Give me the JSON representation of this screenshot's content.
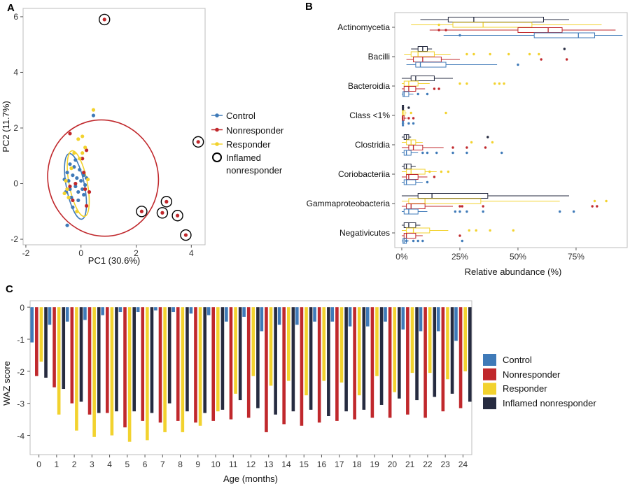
{
  "colors": {
    "control": "#3f7ab8",
    "nonresponder": "#c0282c",
    "responder": "#f2d22e",
    "inflamed": "#262b40"
  },
  "chart_data": [
    {
      "panel": "A",
      "type": "scatter",
      "xlabel": "PC1 (30.6%)",
      "ylabel": "PC2 (11.7%)",
      "xlim": [
        -2.1,
        4.5
      ],
      "ylim": [
        -2.2,
        6.3
      ],
      "xticks": [
        -2,
        0,
        2,
        4
      ],
      "yticks": [
        -2,
        0,
        2,
        4,
        6
      ],
      "legend": [
        {
          "key": "control",
          "label": "Control"
        },
        {
          "key": "nonresponder",
          "label": "Nonresponder"
        },
        {
          "key": "responder",
          "label": "Responder"
        }
      ],
      "legend_ring": {
        "label_line1": "Inflamed",
        "label_line2": "nonresponder"
      },
      "series": [
        {
          "key": "control",
          "points": [
            [
              -0.5,
              0.4
            ],
            [
              -0.45,
              0.1
            ],
            [
              -0.4,
              -0.2
            ],
            [
              -0.3,
              0.3
            ],
            [
              -0.35,
              -0.5
            ],
            [
              -0.25,
              0.6
            ],
            [
              -0.2,
              -0.1
            ],
            [
              -0.15,
              0.2
            ],
            [
              -0.1,
              -0.3
            ],
            [
              -0.05,
              0.5
            ],
            [
              0,
              0.1
            ],
            [
              0.05,
              -0.2
            ],
            [
              0.1,
              0.3
            ],
            [
              -0.55,
              -0.3
            ],
            [
              -0.6,
              0.15
            ],
            [
              -0.2,
              0.85
            ],
            [
              0.15,
              -0.05
            ],
            [
              -0.3,
              -0.85
            ],
            [
              -0.1,
              -0.6
            ],
            [
              0.2,
              0.2
            ],
            [
              -0.5,
              -1.5
            ],
            [
              0.45,
              2.45
            ],
            [
              -0.4,
              0.7
            ],
            [
              0.1,
              -0.4
            ]
          ]
        },
        {
          "key": "nonresponder",
          "points": [
            [
              -0.5,
              -0.2
            ],
            [
              -0.3,
              -0.6
            ],
            [
              0.05,
              0.9
            ],
            [
              0.2,
              -0.8
            ],
            [
              0.15,
              -0.2
            ],
            [
              -0.2,
              0.0
            ],
            [
              0.3,
              -0.3
            ],
            [
              -0.4,
              -0.1
            ],
            [
              0.1,
              0.4
            ],
            [
              -0.4,
              1.8
            ],
            [
              0.2,
              1.2
            ],
            [
              0.85,
              5.9
            ],
            [
              4.25,
              1.5
            ],
            [
              2.2,
              -1.0
            ],
            [
              3.1,
              -0.65
            ],
            [
              2.95,
              -1.05
            ],
            [
              3.5,
              -1.15
            ],
            [
              3.8,
              -1.85
            ]
          ]
        },
        {
          "key": "responder",
          "points": [
            [
              -0.1,
              1.6
            ],
            [
              0.05,
              1.7
            ],
            [
              0.15,
              1.3
            ],
            [
              0.05,
              1.1
            ],
            [
              -0.05,
              0.9
            ],
            [
              -0.25,
              1.1
            ],
            [
              -0.5,
              -0.2
            ],
            [
              -0.45,
              -0.5
            ],
            [
              -0.15,
              -1.0
            ],
            [
              -0.55,
              0.1
            ],
            [
              -0.6,
              -0.35
            ],
            [
              0.45,
              2.65
            ],
            [
              -0.35,
              0.55
            ],
            [
              0.25,
              0.15
            ]
          ]
        }
      ],
      "ellipses": [
        {
          "key": "nonresponder",
          "cx": 0.8,
          "cy": 0.2,
          "rx": 2.0,
          "ry": 2.1,
          "rot": -16
        },
        {
          "key": "control",
          "cx": -0.2,
          "cy": -0.1,
          "rx": 0.33,
          "ry": 1.2,
          "rot": -11
        },
        {
          "key": "responder",
          "cx": -0.1,
          "cy": 0.0,
          "rx": 0.33,
          "ry": 1.2,
          "rot": -11
        }
      ],
      "inflamed_rings": [
        [
          0.85,
          5.9
        ],
        [
          4.25,
          1.5
        ],
        [
          2.2,
          -1.0
        ],
        [
          3.1,
          -0.65
        ],
        [
          2.95,
          -1.05
        ],
        [
          3.5,
          -1.15
        ],
        [
          3.8,
          -1.85
        ]
      ]
    },
    {
      "panel": "B",
      "type": "box",
      "xlabel": "Relative abundance (%)",
      "xlim": [
        -3,
        97
      ],
      "xticks": [
        0,
        25,
        50,
        75
      ],
      "xtick_labels": [
        "0%",
        "25%",
        "50%",
        "75%"
      ],
      "group_order": [
        "inflamed",
        "responder",
        "nonresponder",
        "control"
      ],
      "categories": [
        {
          "name": "Actinomycetia",
          "boxes": [
            [
              8,
              20,
              31,
              61,
              72,
              []
            ],
            [
              4,
              22,
              35,
              56,
              86,
              [
                16
              ]
            ],
            [
              12,
              50,
              63,
              69,
              92,
              [
                16,
                19
              ]
            ],
            [
              18,
              57,
              76,
              83,
              95,
              [
                25
              ]
            ]
          ]
        },
        {
          "name": "Bacilli",
          "boxes": [
            [
              4,
              7,
              9,
              11,
              13,
              [
                70
              ]
            ],
            [
              1,
              4,
              7,
              14,
              21,
              [
                28,
                31,
                38,
                46,
                55,
                59
              ]
            ],
            [
              2,
              5,
              9,
              17,
              25,
              [
                60,
                71
              ]
            ],
            [
              2,
              6,
              8,
              19,
              41,
              [
                50
              ]
            ]
          ]
        },
        {
          "name": "Bacteroidia",
          "boxes": [
            [
              0,
              4,
              6,
              14,
              22,
              []
            ],
            [
              0,
              1,
              3,
              7,
              12,
              [
                25,
                28,
                40,
                42,
                44
              ]
            ],
            [
              0,
              1,
              3,
              6,
              10,
              [
                14,
                16
              ]
            ],
            [
              0,
              0.5,
              1,
              3,
              5,
              [
                7,
                11
              ]
            ]
          ]
        },
        {
          "name": "Class <1%",
          "boxes": [
            [
              0,
              0.2,
              0.5,
              0.8,
              1,
              [
                3
              ]
            ],
            [
              0,
              0.3,
              0.6,
              1.4,
              2,
              [
                4,
                19
              ]
            ],
            [
              0,
              0.2,
              0.5,
              1,
              2,
              [
                3,
                5
              ]
            ],
            [
              0,
              0.2,
              0.4,
              0.8,
              1,
              [
                3,
                5
              ]
            ]
          ]
        },
        {
          "name": "Clostridia",
          "boxes": [
            [
              0,
              1,
              2,
              3,
              4,
              [
                37
              ]
            ],
            [
              0,
              2,
              4,
              6,
              9,
              [
                30,
                39
              ]
            ],
            [
              0,
              3,
              5,
              9,
              18,
              [
                22,
                28,
                36
              ]
            ],
            [
              0,
              1,
              2,
              4,
              7,
              [
                9,
                11,
                15,
                22,
                28,
                43
              ]
            ]
          ]
        },
        {
          "name": "Coriobacteriia",
          "boxes": [
            [
              0,
              1,
              2,
              4,
              6,
              []
            ],
            [
              0,
              2,
              4,
              10,
              15,
              [
                12,
                17,
                20
              ]
            ],
            [
              0,
              2,
              3,
              7,
              11,
              [
                14
              ]
            ],
            [
              0,
              1,
              2,
              6,
              9,
              [
                11
              ]
            ]
          ]
        },
        {
          "name": "Gammaproteobacteria",
          "boxes": [
            [
              0,
              7,
              13,
              37,
              72,
              []
            ],
            [
              0,
              3,
              10,
              34,
              68,
              [
                83,
                88
              ]
            ],
            [
              0,
              2,
              4,
              10,
              22,
              [
                25,
                26,
                35,
                82,
                84
              ]
            ],
            [
              0,
              1,
              3,
              7,
              11,
              [
                23,
                25,
                28,
                35,
                68,
                74
              ]
            ]
          ]
        },
        {
          "name": "Negativicutes",
          "boxes": [
            [
              0,
              1,
              3,
              6,
              8,
              []
            ],
            [
              0,
              2,
              5,
              12,
              20,
              [
                29,
                32,
                38,
                48
              ]
            ],
            [
              0,
              1,
              2,
              6,
              9,
              [
                25
              ]
            ],
            [
              0,
              0.5,
              1,
              2,
              3,
              [
                2,
                5,
                7,
                9,
                26
              ]
            ]
          ]
        }
      ]
    },
    {
      "panel": "C",
      "type": "bar",
      "xlabel": "Age (months)",
      "ylabel": "WAZ score",
      "ylim": [
        -4.6,
        0.2
      ],
      "yticks": [
        0,
        -1,
        -2,
        -3,
        -4
      ],
      "categories": [
        "0",
        "1",
        "2",
        "3",
        "4",
        "5",
        "6",
        "7",
        "8",
        "9",
        "10",
        "11",
        "12",
        "13",
        "14",
        "15",
        "16",
        "17",
        "18",
        "19",
        "20",
        "21",
        "22",
        "23",
        "24"
      ],
      "series": [
        {
          "key": "control",
          "name": "Control",
          "values": [
            -1.1,
            -0.55,
            -0.45,
            -0.4,
            -0.25,
            -0.15,
            -0.15,
            -0.1,
            -0.15,
            -0.2,
            -0.25,
            -0.45,
            -0.3,
            -0.75,
            -0.55,
            -0.55,
            -0.45,
            -0.45,
            -0.6,
            -0.6,
            -0.45,
            -0.7,
            -0.75,
            -0.75,
            -1.05
          ]
        },
        {
          "key": "nonresponder",
          "name": "Nonresponder",
          "values": [
            -2.15,
            -2.5,
            -3.0,
            -3.35,
            -3.3,
            -3.75,
            -3.55,
            -3.6,
            -3.55,
            -3.6,
            -3.55,
            -3.5,
            -3.45,
            -3.9,
            -3.65,
            -3.7,
            -3.6,
            -3.55,
            -3.5,
            -3.45,
            -3.45,
            -3.35,
            -3.45,
            -3.25,
            -3.15
          ]
        },
        {
          "key": "responder",
          "name": "Responder",
          "values": [
            -1.7,
            -3.35,
            -3.85,
            -4.05,
            -4.0,
            -4.2,
            -4.15,
            -3.9,
            -3.9,
            -3.7,
            -3.25,
            -2.7,
            -2.15,
            -2.45,
            -2.3,
            -2.75,
            -2.3,
            -2.35,
            -2.75,
            -2.15,
            -2.65,
            -2.05,
            -2.05,
            -2.25,
            -2.0
          ]
        },
        {
          "key": "inflamed",
          "name": "Inflamed nonresponder",
          "values": [
            -2.2,
            -2.55,
            -2.95,
            -3.3,
            -3.25,
            -3.25,
            -3.3,
            -3.0,
            -3.25,
            -3.3,
            -3.2,
            -2.9,
            -3.15,
            -3.35,
            -3.25,
            -3.2,
            -3.4,
            -3.25,
            -3.2,
            -3.05,
            -2.85,
            -2.9,
            -2.8,
            -2.7,
            -2.95
          ]
        }
      ]
    }
  ]
}
